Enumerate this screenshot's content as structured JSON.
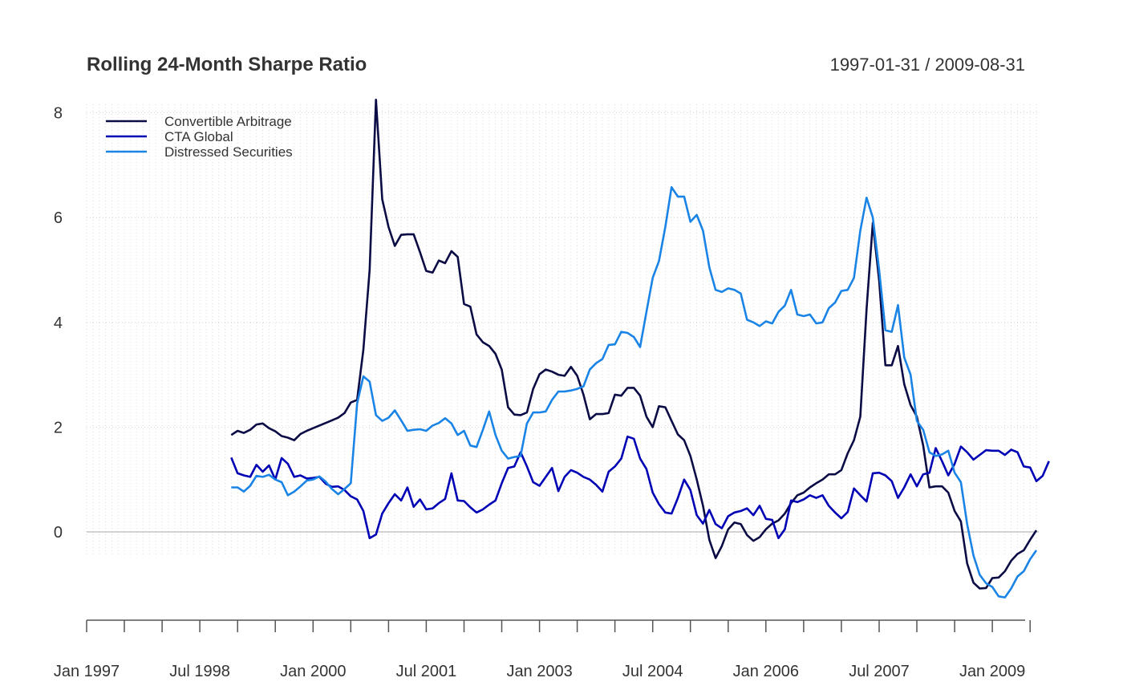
{
  "chart_data": {
    "type": "line",
    "title": "Rolling 24-Month Sharpe Ratio",
    "date_range": "1997-01-31 / 2009-08-31",
    "xlabel": "",
    "ylabel": "",
    "x_tick_labels": [
      "Jan 1997",
      "Jul 1998",
      "Jan 2000",
      "Jul 2001",
      "Jan 2003",
      "Jul 2004",
      "Jan 2006",
      "Jul 2007",
      "Jan 2009"
    ],
    "y_ticks": [
      0,
      2,
      4,
      6,
      8
    ],
    "y_tick_labels": [
      "0",
      "2",
      "4",
      "6",
      "8"
    ],
    "ylim": [
      -1.7,
      8.2
    ],
    "grid": true,
    "legend_position": "top-left",
    "x_start": "1997-01",
    "x_end": "2009-08",
    "series": [
      {
        "name": "Convertible Arbitrage",
        "color": "#0b0b45",
        "start": "1998-12",
        "values": [
          1.85,
          1.93,
          1.89,
          1.95,
          2.05,
          2.07,
          1.98,
          1.92,
          1.83,
          1.8,
          1.75,
          1.87,
          1.93,
          1.98,
          2.03,
          2.08,
          2.13,
          2.18,
          2.27,
          2.47,
          2.52,
          3.48,
          5.0,
          8.25,
          6.35,
          5.82,
          5.46,
          5.67,
          5.68,
          5.68,
          5.34,
          4.98,
          4.95,
          5.18,
          5.13,
          5.36,
          5.25,
          4.35,
          4.3,
          3.77,
          3.62,
          3.55,
          3.4,
          3.1,
          2.38,
          2.24,
          2.23,
          2.28,
          2.73,
          3.01,
          3.1,
          3.06,
          3.0,
          2.98,
          3.15,
          2.98,
          2.62,
          2.15,
          2.25,
          2.25,
          2.27,
          2.62,
          2.6,
          2.75,
          2.75,
          2.6,
          2.2,
          2.0,
          2.4,
          2.38,
          2.12,
          1.86,
          1.75,
          1.45,
          1.0,
          0.5,
          -0.15,
          -0.5,
          -0.27,
          0.05,
          0.18,
          0.15,
          -0.06,
          -0.17,
          -0.1,
          0.05,
          0.16,
          0.22,
          0.35,
          0.55,
          0.7,
          0.75,
          0.85,
          0.93,
          1.0,
          1.1,
          1.1,
          1.18,
          1.5,
          1.75,
          2.2,
          4.25,
          5.9,
          4.8,
          3.18,
          3.18,
          3.55,
          2.82,
          2.42,
          2.2,
          1.65,
          0.85,
          0.87,
          0.87,
          0.75,
          0.4,
          0.2,
          -0.6,
          -0.97,
          -1.08,
          -1.07,
          -0.88,
          -0.87,
          -0.75,
          -0.55,
          -0.42,
          -0.35,
          -0.15,
          0.03
        ]
      },
      {
        "name": "CTA Global",
        "color": "#0000b5",
        "start": "1998-12",
        "values": [
          1.42,
          1.12,
          1.08,
          1.05,
          1.28,
          1.15,
          1.27,
          1.0,
          1.41,
          1.3,
          1.05,
          1.08,
          1.02,
          1.03,
          1.05,
          0.92,
          0.86,
          0.87,
          0.8,
          0.68,
          0.62,
          0.4,
          -0.12,
          -0.05,
          0.35,
          0.55,
          0.72,
          0.6,
          0.85,
          0.48,
          0.62,
          0.43,
          0.45,
          0.55,
          0.63,
          1.12,
          0.6,
          0.59,
          0.47,
          0.37,
          0.43,
          0.52,
          0.6,
          0.93,
          1.22,
          1.25,
          1.52,
          1.25,
          0.95,
          0.88,
          1.05,
          1.22,
          0.78,
          1.05,
          1.18,
          1.13,
          1.05,
          1.0,
          0.9,
          0.77,
          1.15,
          1.25,
          1.4,
          1.82,
          1.78,
          1.4,
          1.2,
          0.75,
          0.53,
          0.37,
          0.35,
          0.65,
          1.0,
          0.8,
          0.32,
          0.16,
          0.42,
          0.15,
          0.07,
          0.3,
          0.37,
          0.4,
          0.45,
          0.32,
          0.5,
          0.25,
          0.23,
          -0.12,
          0.05,
          0.6,
          0.57,
          0.62,
          0.7,
          0.65,
          0.7,
          0.5,
          0.37,
          0.26,
          0.38,
          0.83,
          0.7,
          0.58,
          1.12,
          1.13,
          1.08,
          0.97,
          0.65,
          0.85,
          1.1,
          0.87,
          1.1,
          1.13,
          1.6,
          1.35,
          1.08,
          1.3,
          1.63,
          1.52,
          1.38,
          1.47,
          1.56,
          1.55,
          1.55,
          1.47,
          1.57,
          1.52,
          1.25,
          1.23,
          0.97,
          1.07,
          1.35
        ]
      },
      {
        "name": "Distressed Securities",
        "color": "#1a84e6",
        "start": "1998-12",
        "values": [
          0.85,
          0.85,
          0.77,
          0.88,
          1.07,
          1.05,
          1.09,
          1.0,
          0.95,
          0.7,
          0.77,
          0.87,
          0.98,
          1.0,
          1.06,
          0.96,
          0.82,
          0.72,
          0.82,
          0.93,
          2.45,
          2.97,
          2.87,
          2.23,
          2.12,
          2.18,
          2.32,
          2.13,
          1.93,
          1.95,
          1.96,
          1.93,
          2.03,
          2.08,
          2.17,
          2.07,
          1.85,
          1.93,
          1.65,
          1.62,
          1.95,
          2.3,
          1.85,
          1.55,
          1.4,
          1.43,
          1.45,
          2.07,
          2.28,
          2.28,
          2.3,
          2.52,
          2.68,
          2.68,
          2.7,
          2.73,
          2.78,
          3.1,
          3.22,
          3.3,
          3.57,
          3.58,
          3.82,
          3.8,
          3.72,
          3.53,
          4.2,
          4.85,
          5.17,
          5.82,
          6.58,
          6.4,
          6.4,
          5.92,
          6.05,
          5.75,
          5.05,
          4.62,
          4.58,
          4.65,
          4.62,
          4.55,
          4.05,
          4.0,
          3.93,
          4.02,
          3.98,
          4.2,
          4.32,
          4.62,
          4.15,
          4.12,
          4.15,
          3.98,
          4.0,
          4.27,
          4.38,
          4.6,
          4.62,
          4.85,
          5.75,
          6.38,
          6.0,
          5.0,
          3.85,
          3.82,
          4.33,
          3.33,
          3.0,
          2.12,
          1.95,
          1.52,
          1.45,
          1.48,
          1.55,
          1.13,
          0.95,
          0.15,
          -0.45,
          -0.82,
          -0.98,
          -1.05,
          -1.23,
          -1.25,
          -1.08,
          -0.85,
          -0.75,
          -0.52,
          -0.35
        ]
      }
    ]
  }
}
